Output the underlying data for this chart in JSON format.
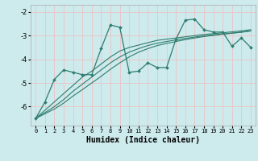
{
  "xlabel": "Humidex (Indice chaleur)",
  "bg_color": "#cdeaed",
  "grid_color": "#e8c8c8",
  "line_color": "#2e7d6e",
  "xlim": [
    -0.5,
    23.5
  ],
  "ylim": [
    -6.8,
    -1.7
  ],
  "yticks": [
    -6,
    -5,
    -4,
    -3,
    -2
  ],
  "xticks": [
    0,
    1,
    2,
    3,
    4,
    5,
    6,
    7,
    8,
    9,
    10,
    11,
    12,
    13,
    14,
    15,
    16,
    17,
    18,
    19,
    20,
    21,
    22,
    23
  ],
  "x": [
    0,
    1,
    2,
    3,
    4,
    5,
    6,
    7,
    8,
    9,
    10,
    11,
    12,
    13,
    14,
    15,
    16,
    17,
    18,
    19,
    20,
    21,
    22,
    23
  ],
  "y_jagged": [
    -6.5,
    -5.8,
    -4.85,
    -4.45,
    -4.55,
    -4.65,
    -4.65,
    -3.55,
    -2.55,
    -2.65,
    -4.55,
    -4.5,
    -4.15,
    -4.35,
    -4.35,
    -3.15,
    -2.35,
    -2.3,
    -2.75,
    -2.85,
    -2.85,
    -3.45,
    -3.1,
    -3.5
  ],
  "y_line1": [
    -6.5,
    -6.15,
    -5.8,
    -5.45,
    -5.1,
    -4.75,
    -4.5,
    -4.2,
    -3.9,
    -3.65,
    -3.5,
    -3.4,
    -3.3,
    -3.2,
    -3.15,
    -3.1,
    -3.05,
    -3.0,
    -2.95,
    -2.92,
    -2.88,
    -2.84,
    -2.8,
    -2.75
  ],
  "y_line2": [
    -6.5,
    -6.25,
    -6.0,
    -5.7,
    -5.35,
    -5.05,
    -4.75,
    -4.45,
    -4.15,
    -3.9,
    -3.7,
    -3.55,
    -3.42,
    -3.32,
    -3.25,
    -3.18,
    -3.12,
    -3.06,
    -3.01,
    -2.97,
    -2.93,
    -2.89,
    -2.85,
    -2.8
  ],
  "y_line3": [
    -6.5,
    -6.3,
    -6.1,
    -5.85,
    -5.55,
    -5.28,
    -5.0,
    -4.72,
    -4.42,
    -4.15,
    -3.9,
    -3.7,
    -3.55,
    -3.42,
    -3.33,
    -3.25,
    -3.17,
    -3.1,
    -3.04,
    -2.99,
    -2.94,
    -2.9,
    -2.86,
    -2.8
  ]
}
